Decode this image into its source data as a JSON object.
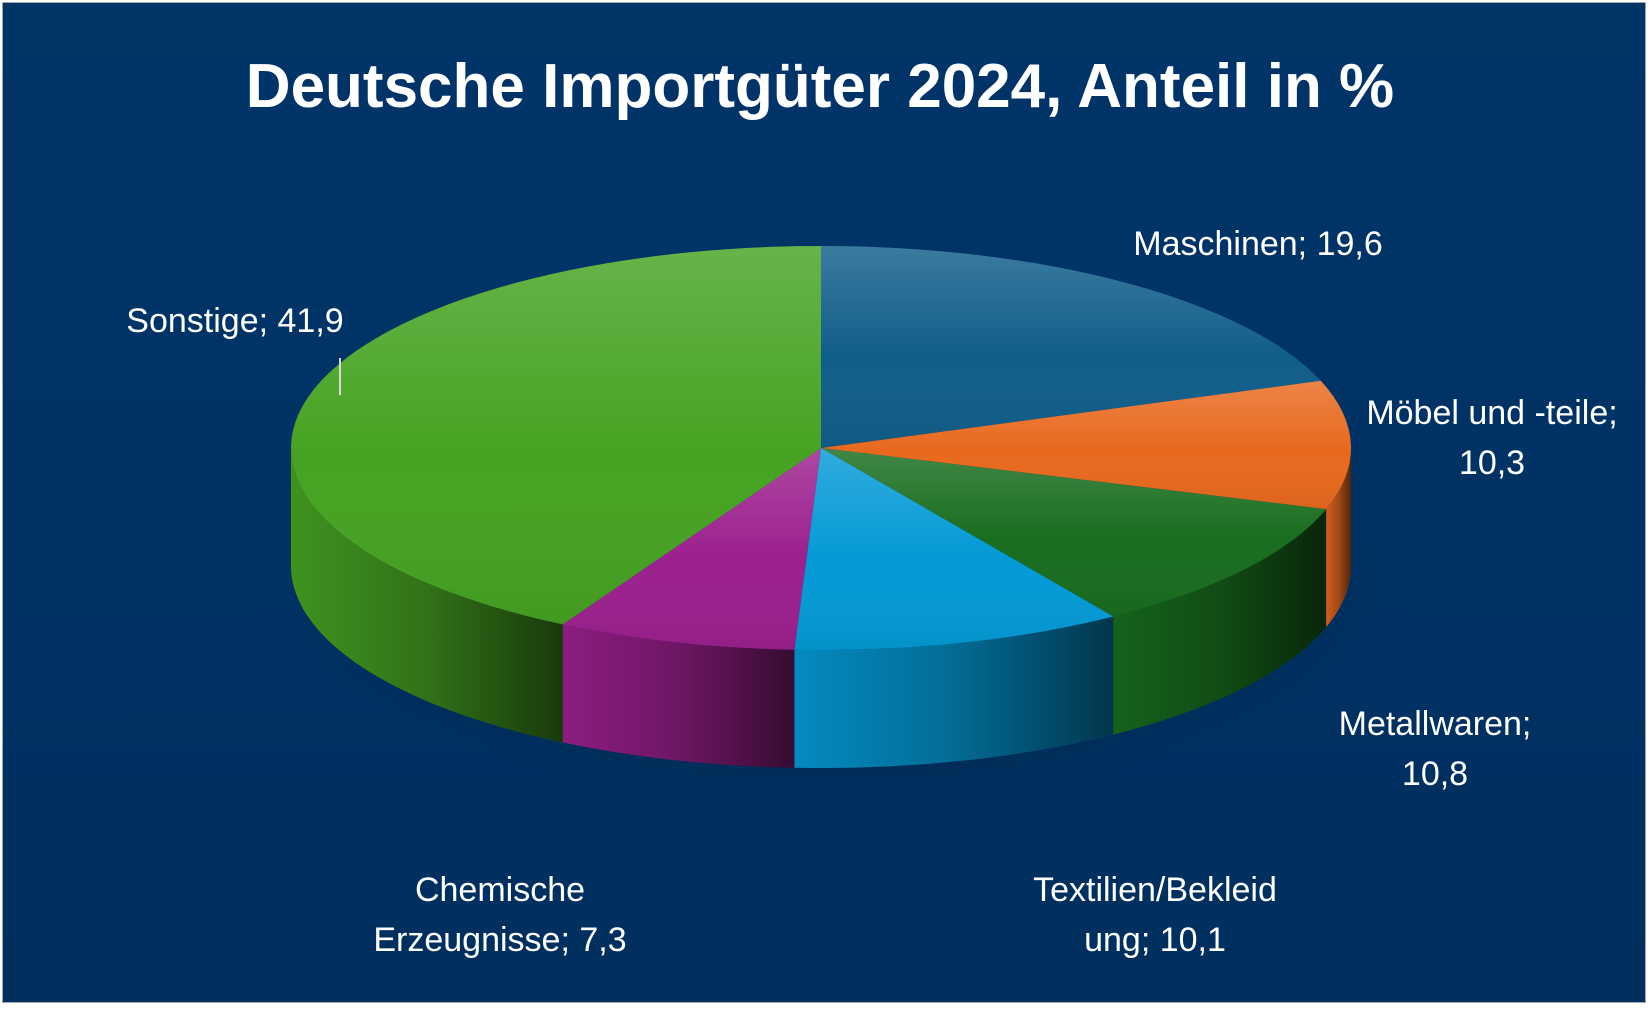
{
  "chart_data": {
    "type": "pie",
    "title": "Deutsche Importgüter 2024, Anteil in %",
    "background": "#00305e",
    "slices": [
      {
        "label": "Maschinen; 19,6",
        "lines": [
          "Maschinen; 19,6"
        ],
        "value": 19.6,
        "color": "#105e8a"
      },
      {
        "label": "Möbel und -teile; 10,3",
        "lines": [
          "Möbel und -teile;",
          "10,3"
        ],
        "value": 10.3,
        "color": "#e8691e"
      },
      {
        "label": "Metallwaren; 10,8",
        "lines": [
          "Metallwaren;",
          "10,8"
        ],
        "value": 10.8,
        "color": "#186d1e"
      },
      {
        "label": "Textilien/Bekleidung; 10,1",
        "lines": [
          "Textilien/Bekleid",
          "ung; 10,1"
        ],
        "value": 10.1,
        "color": "#049ad6"
      },
      {
        "label": "Chemische Erzeugnisse; 7,3",
        "lines": [
          "Chemische",
          "Erzeugnisse; 7,3"
        ],
        "value": 7.3,
        "color": "#9c208e"
      },
      {
        "label": "Sonstige; 41,9",
        "lines": [
          "Sonstige; 41,9"
        ],
        "value": 41.9,
        "color": "#46a322"
      }
    ]
  }
}
